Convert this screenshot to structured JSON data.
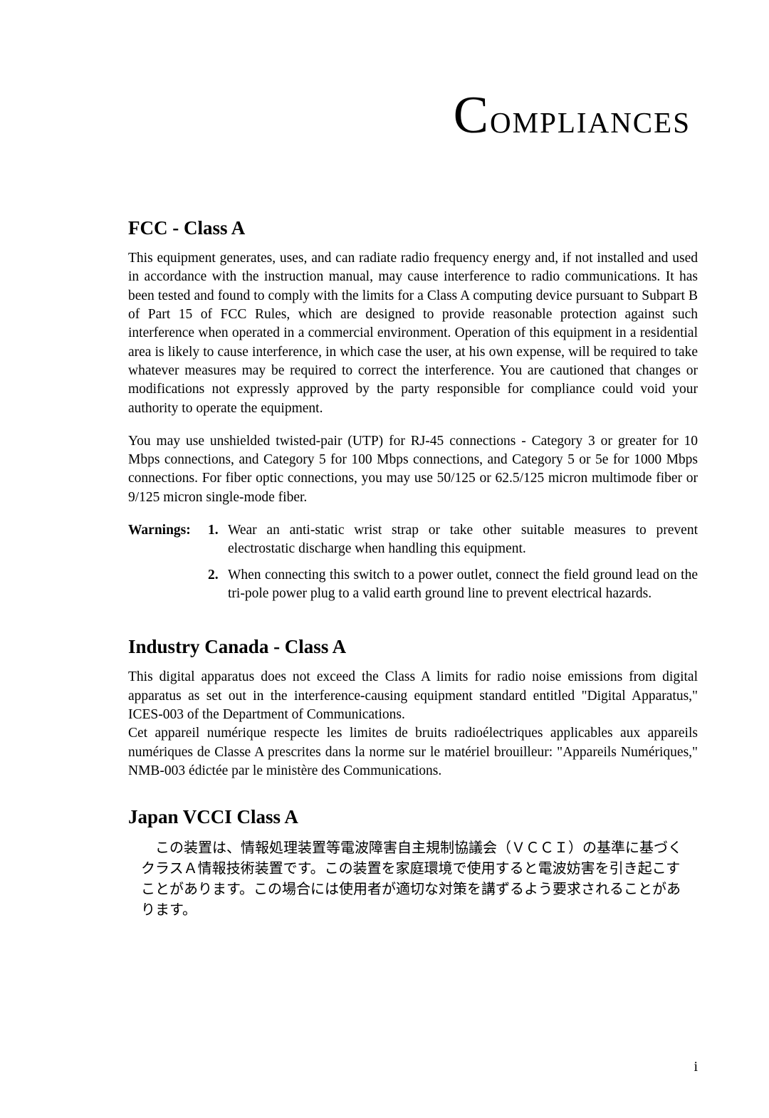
{
  "title": {
    "first_letter": "C",
    "rest": "ompliances"
  },
  "sections": [
    {
      "heading": "FCC - Class A",
      "paragraphs": [
        "This equipment generates, uses, and can radiate radio frequency energy and, if not installed and used in accordance with the instruction manual, may cause interference to radio communications. It has been tested and found to comply with the limits for a Class A computing device pursuant to Subpart B of Part 15 of FCC Rules, which are designed to provide reasonable protection against such interference when operated in a commercial environment. Operation of this equipment in a residential area is likely to cause interference, in which case the user, at his own expense, will be required to take whatever measures may be required to correct the interference. You are cautioned that changes or modifications not expressly approved by the party responsible for compliance could void your authority to operate the equipment.",
        "You may use unshielded twisted-pair (UTP) for RJ-45 connections - Category 3 or greater for 10 Mbps connections, and Category 5 for 100 Mbps connections, and Category 5 or 5e for 1000 Mbps connections. For fiber optic connections, you may use 50/125 or 62.5/125 micron multimode fiber or 9/125 micron single-mode fiber."
      ],
      "warnings_label": "Warnings:",
      "warnings": [
        {
          "num": "1.",
          "text": "Wear an anti-static wrist strap or take other suitable measures to prevent electrostatic discharge when handling this equipment."
        },
        {
          "num": "2.",
          "text": "When connecting this switch to a power outlet, connect the field ground lead on the tri-pole power plug to a valid earth ground line to prevent electrical hazards."
        }
      ]
    },
    {
      "heading": "Industry Canada - Class A",
      "paragraphs": [
        "This digital apparatus does not exceed the Class A limits for radio noise emissions from digital apparatus as set out in the interference-causing equipment standard entitled \"Digital Apparatus,\" ICES-003 of the Department of Communications.\nCet appareil numérique respecte les limites de bruits radioélectriques applicables aux appareils numériques de Classe A prescrites dans la norme sur le matériel brouilleur: \"Appareils Numériques,\" NMB-003 édictée par le ministère des Communications."
      ]
    },
    {
      "heading": "Japan VCCI Class A",
      "jp_text": "　この装置は、情報処理装置等電波障害自主規制協議会（ＶＣＣＩ）の基準に基づくクラスＡ情報技術装置です。この装置を家庭環境で使用すると電波妨害を引き起こすことがあります。この場合には使用者が適切な対策を講ずるよう要求されることがあります。"
    }
  ],
  "page_number": "i"
}
